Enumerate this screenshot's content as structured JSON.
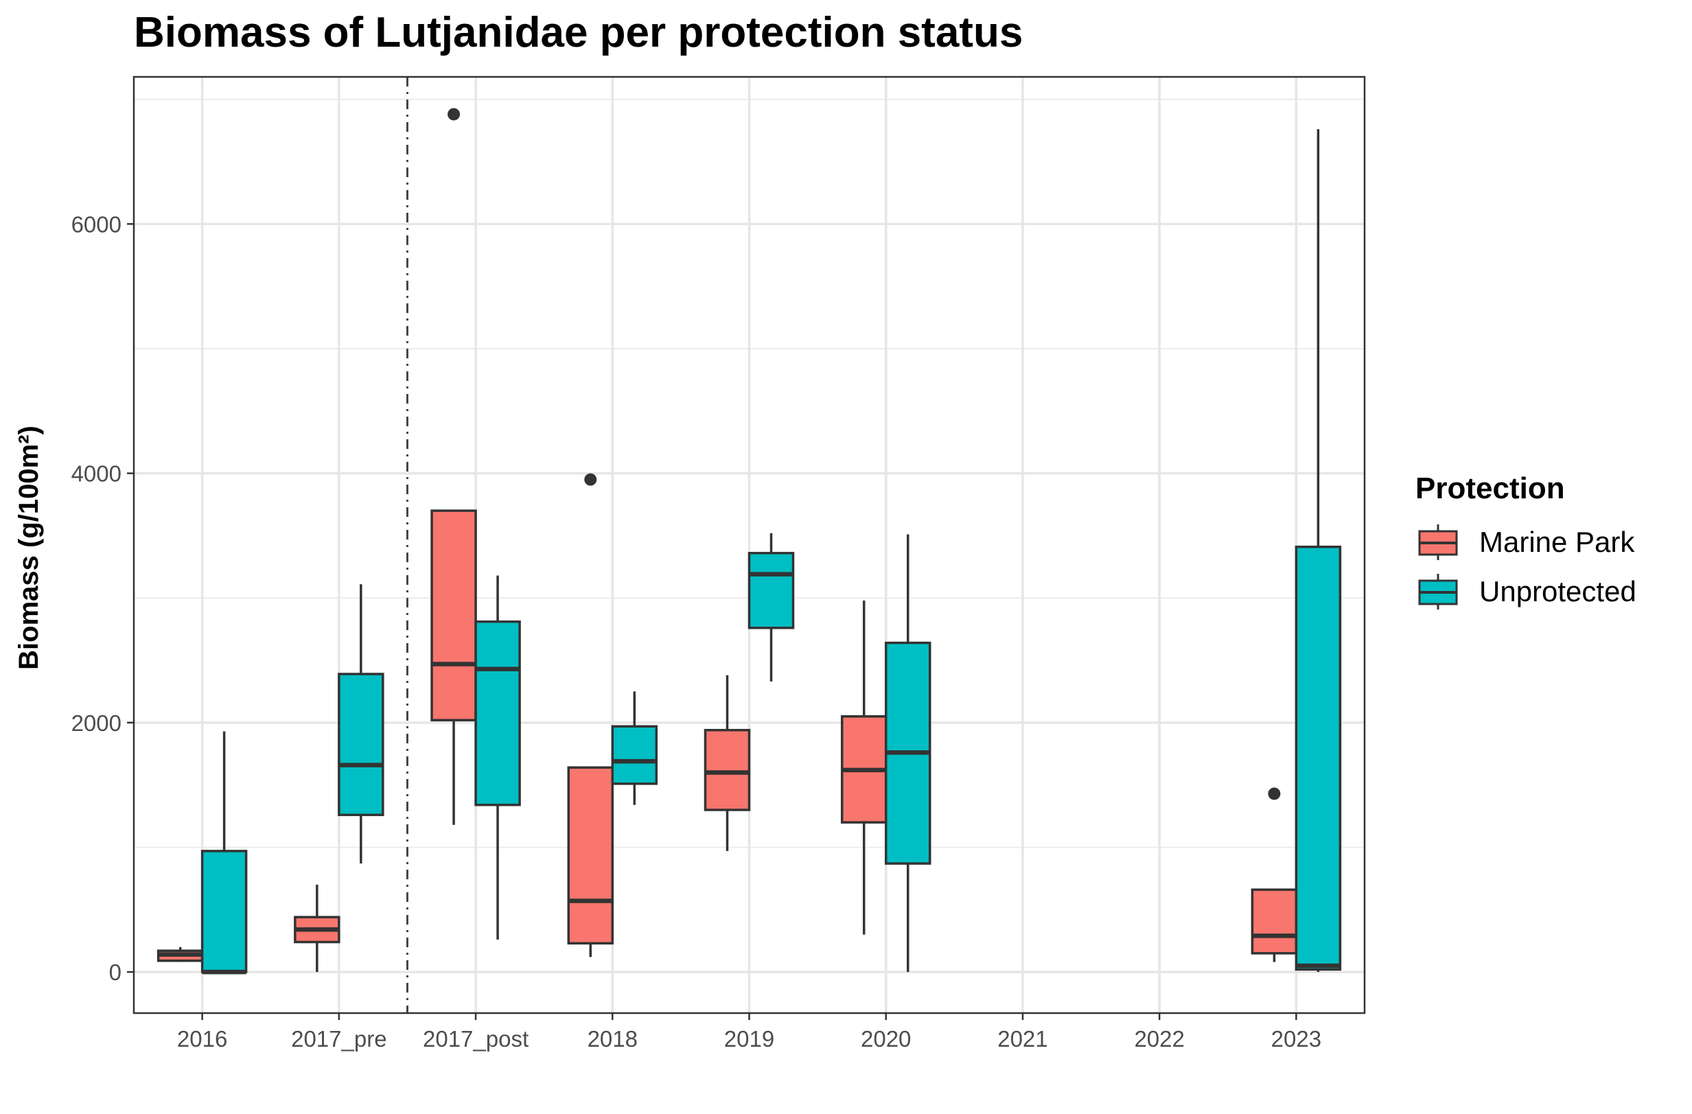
{
  "chart_data": {
    "type": "boxplot",
    "title": "Biomass of Lutjanidae per protection status",
    "xlabel": "",
    "ylabel": "Biomass (g/100m²)",
    "categories": [
      "2016",
      "2017_pre",
      "2017_post",
      "2018",
      "2019",
      "2020",
      "2021",
      "2022",
      "2023"
    ],
    "ylim": [
      -330,
      7180
    ],
    "yticks": [
      0,
      2000,
      4000,
      6000
    ],
    "yticklabels": [
      "0",
      "2000",
      "4000",
      "6000"
    ],
    "grid": true,
    "separator": {
      "between": [
        "2017_pre",
        "2017_post"
      ],
      "style": "dashdot"
    },
    "legend": {
      "title": "Protection",
      "position": "right"
    },
    "series": [
      {
        "name": "Marine Park",
        "color": "#F8766D",
        "boxes": [
          {
            "category": "2016",
            "lower_whisker": 80,
            "q1": 90,
            "median": 140,
            "q3": 170,
            "upper_whisker": 200,
            "outliers": []
          },
          {
            "category": "2017_pre",
            "lower_whisker": 0,
            "q1": 240,
            "median": 340,
            "q3": 440,
            "upper_whisker": 700,
            "outliers": []
          },
          {
            "category": "2017_post",
            "lower_whisker": 1180,
            "q1": 2020,
            "median": 2470,
            "q3": 3700,
            "upper_whisker": 3700,
            "outliers": [
              6880
            ]
          },
          {
            "category": "2018",
            "lower_whisker": 120,
            "q1": 230,
            "median": 570,
            "q3": 1640,
            "upper_whisker": 1640,
            "outliers": [
              3950
            ]
          },
          {
            "category": "2019",
            "lower_whisker": 970,
            "q1": 1300,
            "median": 1600,
            "q3": 1940,
            "upper_whisker": 2380,
            "outliers": []
          },
          {
            "category": "2020",
            "lower_whisker": 300,
            "q1": 1200,
            "median": 1620,
            "q3": 2050,
            "upper_whisker": 2980,
            "outliers": []
          },
          {
            "category": "2023",
            "lower_whisker": 80,
            "q1": 150,
            "median": 290,
            "q3": 660,
            "upper_whisker": 660,
            "outliers": [
              1430
            ]
          }
        ]
      },
      {
        "name": "Unprotected",
        "color": "#00BFC4",
        "boxes": [
          {
            "category": "2016",
            "lower_whisker": 0,
            "q1": 0,
            "median": 0,
            "q3": 970,
            "upper_whisker": 1930,
            "outliers": []
          },
          {
            "category": "2017_pre",
            "lower_whisker": 870,
            "q1": 1260,
            "median": 1660,
            "q3": 2390,
            "upper_whisker": 3110,
            "outliers": []
          },
          {
            "category": "2017_post",
            "lower_whisker": 260,
            "q1": 1340,
            "median": 2430,
            "q3": 2810,
            "upper_whisker": 3180,
            "outliers": []
          },
          {
            "category": "2018",
            "lower_whisker": 1340,
            "q1": 1510,
            "median": 1690,
            "q3": 1970,
            "upper_whisker": 2250,
            "outliers": []
          },
          {
            "category": "2019",
            "lower_whisker": 2330,
            "q1": 2760,
            "median": 3190,
            "q3": 3360,
            "upper_whisker": 3520,
            "outliers": []
          },
          {
            "category": "2020",
            "lower_whisker": 0,
            "q1": 870,
            "median": 1760,
            "q3": 2640,
            "upper_whisker": 3510,
            "outliers": []
          },
          {
            "category": "2023",
            "lower_whisker": 0,
            "q1": 20,
            "median": 50,
            "q3": 3410,
            "upper_whisker": 6760,
            "outliers": []
          }
        ]
      }
    ]
  }
}
